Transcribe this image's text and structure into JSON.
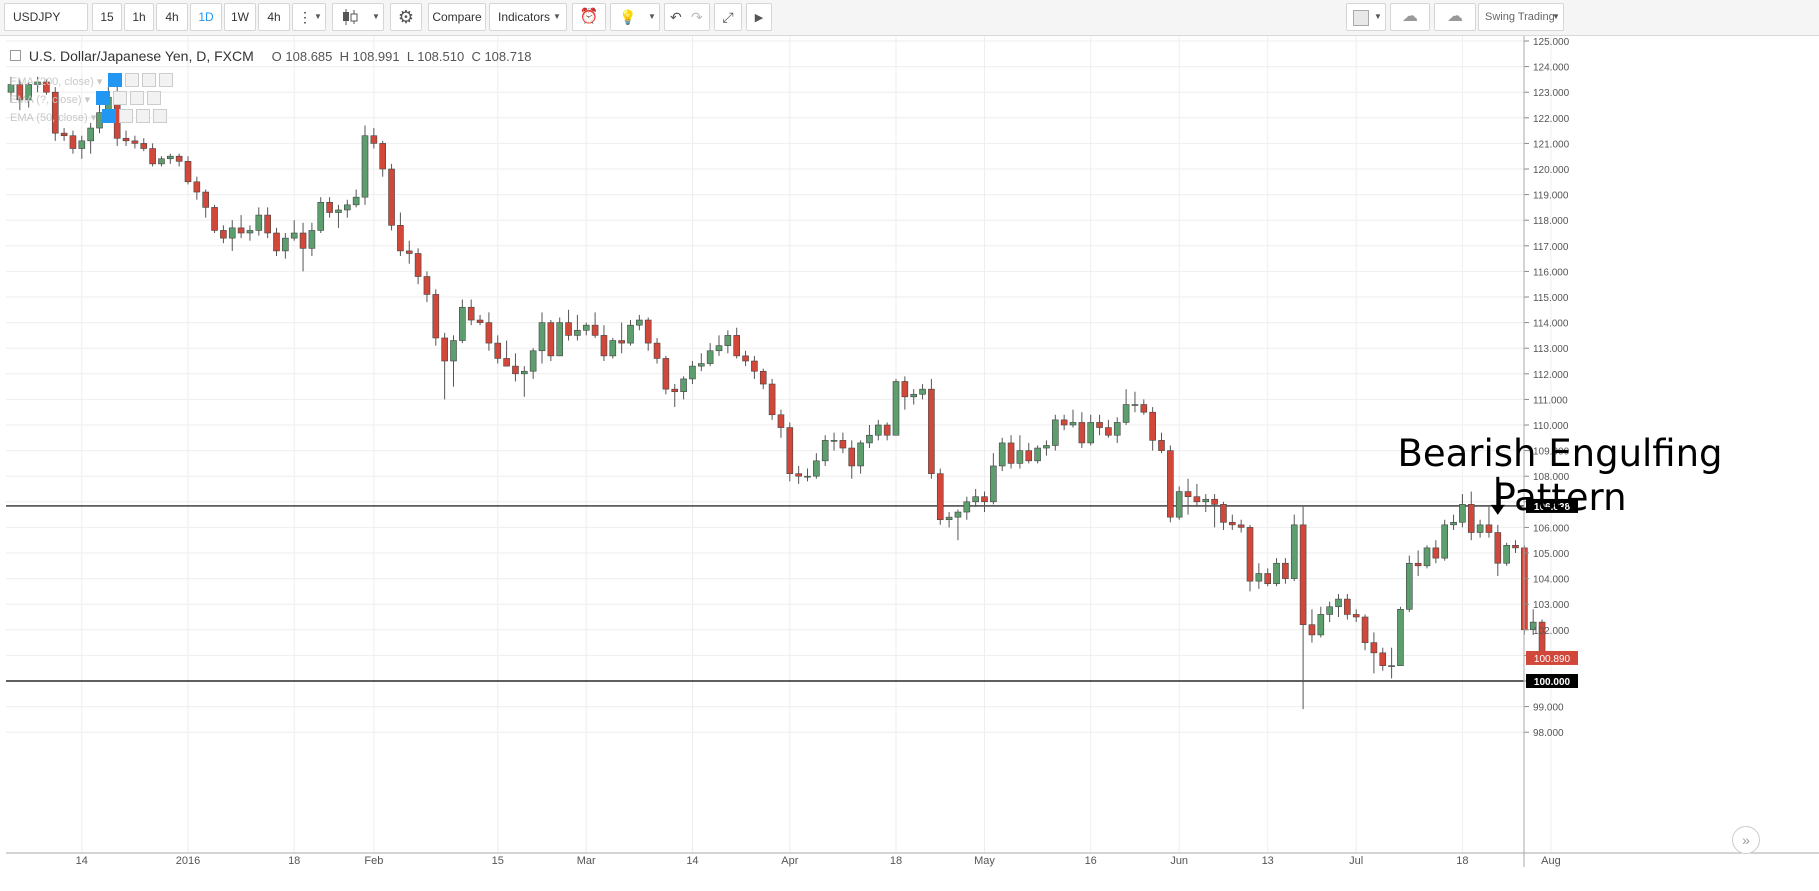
{
  "toolbar": {
    "symbol": "USDJPY",
    "intervals": [
      "15",
      "1h",
      "4h",
      "1D",
      "1W",
      "4h"
    ],
    "active_interval": "1D",
    "compare_label": "Compare",
    "indicators_label": "Indicators",
    "layout_label": "Swing Trading"
  },
  "legend": {
    "title": "U.S. Dollar/Japanese Yen, D, FXCM",
    "open": "O 108.685",
    "high": "H 108.991",
    "low": "L 108.510",
    "close": "C 108.718",
    "indicators": [
      "EMA (200, close)",
      "EMA (?, close)",
      "EMA (50, close)"
    ]
  },
  "annotation": {
    "line1": "Bearish Engulfing",
    "line2": "Pattern"
  },
  "colors": {
    "up": "#5c9e6e",
    "down": "#d1483a",
    "grid": "#eeeeee",
    "level_line": "#000000",
    "last_price_bg": "#d1483a"
  },
  "chart_data": {
    "type": "candlestick",
    "symbol": "USDJPY",
    "timeframe": "D",
    "ylim": [
      97.6,
      125.3
    ],
    "y_ticks": [
      98,
      99,
      100,
      101,
      102,
      103,
      104,
      105,
      106,
      107,
      108,
      109,
      110,
      111,
      112,
      113,
      114,
      115,
      116,
      117,
      118,
      119,
      120,
      121,
      122,
      123,
      124,
      125
    ],
    "x_tick_labels": [
      "14",
      "2016",
      "18",
      "Feb",
      "15",
      "Mar",
      "14",
      "Apr",
      "18",
      "May",
      "16",
      "Jun",
      "13",
      "Jul",
      "18",
      "Aug"
    ],
    "x_tick_index": [
      8,
      20,
      32,
      41,
      55,
      65,
      77,
      88,
      100,
      110,
      122,
      132,
      142,
      152,
      164,
      174
    ],
    "horizontal_levels": [
      106.838,
      100.0
    ],
    "level_labels": [
      "106.838",
      "100.000"
    ],
    "last_price": "100.890",
    "annotations": [
      {
        "text": "Bearish Engulfing Pattern",
        "candle_index": 168
      }
    ],
    "candles": [
      {
        "o": 123.0,
        "h": 123.6,
        "l": 122.6,
        "c": 123.3
      },
      {
        "o": 123.3,
        "h": 123.5,
        "l": 122.3,
        "c": 122.7
      },
      {
        "o": 122.7,
        "h": 123.4,
        "l": 122.4,
        "c": 123.3
      },
      {
        "o": 123.3,
        "h": 123.6,
        "l": 123.0,
        "c": 123.4
      },
      {
        "o": 123.4,
        "h": 123.5,
        "l": 122.9,
        "c": 123.0
      },
      {
        "o": 123.0,
        "h": 123.2,
        "l": 121.1,
        "c": 121.4
      },
      {
        "o": 121.4,
        "h": 121.6,
        "l": 121.1,
        "c": 121.3
      },
      {
        "o": 121.3,
        "h": 121.5,
        "l": 120.6,
        "c": 120.8
      },
      {
        "o": 120.8,
        "h": 121.3,
        "l": 120.4,
        "c": 121.1
      },
      {
        "o": 121.1,
        "h": 121.8,
        "l": 120.6,
        "c": 121.6
      },
      {
        "o": 121.6,
        "h": 122.5,
        "l": 121.4,
        "c": 122.2
      },
      {
        "o": 122.2,
        "h": 123.2,
        "l": 121.9,
        "c": 122.8
      },
      {
        "o": 122.8,
        "h": 123.3,
        "l": 120.9,
        "c": 121.2
      },
      {
        "o": 121.2,
        "h": 121.5,
        "l": 120.9,
        "c": 121.1
      },
      {
        "o": 121.1,
        "h": 121.3,
        "l": 120.8,
        "c": 121.0
      },
      {
        "o": 121.0,
        "h": 121.2,
        "l": 120.7,
        "c": 120.8
      },
      {
        "o": 120.8,
        "h": 121.0,
        "l": 120.1,
        "c": 120.2
      },
      {
        "o": 120.2,
        "h": 120.5,
        "l": 120.1,
        "c": 120.4
      },
      {
        "o": 120.4,
        "h": 120.6,
        "l": 120.2,
        "c": 120.5
      },
      {
        "o": 120.5,
        "h": 120.6,
        "l": 120.1,
        "c": 120.3
      },
      {
        "o": 120.3,
        "h": 120.5,
        "l": 119.4,
        "c": 119.5
      },
      {
        "o": 119.5,
        "h": 119.7,
        "l": 118.8,
        "c": 119.1
      },
      {
        "o": 119.1,
        "h": 119.2,
        "l": 118.1,
        "c": 118.5
      },
      {
        "o": 118.5,
        "h": 118.6,
        "l": 117.5,
        "c": 117.6
      },
      {
        "o": 117.6,
        "h": 117.8,
        "l": 117.1,
        "c": 117.3
      },
      {
        "o": 117.3,
        "h": 118.0,
        "l": 116.8,
        "c": 117.7
      },
      {
        "o": 117.7,
        "h": 118.2,
        "l": 117.3,
        "c": 117.5
      },
      {
        "o": 117.5,
        "h": 117.8,
        "l": 117.2,
        "c": 117.6
      },
      {
        "o": 117.6,
        "h": 118.5,
        "l": 117.4,
        "c": 118.2
      },
      {
        "o": 118.2,
        "h": 118.5,
        "l": 117.3,
        "c": 117.5
      },
      {
        "o": 117.5,
        "h": 117.7,
        "l": 116.6,
        "c": 116.8
      },
      {
        "o": 116.8,
        "h": 117.5,
        "l": 116.5,
        "c": 117.3
      },
      {
        "o": 117.3,
        "h": 118.0,
        "l": 117.2,
        "c": 117.5
      },
      {
        "o": 117.5,
        "h": 117.9,
        "l": 116.0,
        "c": 116.9
      },
      {
        "o": 116.9,
        "h": 117.9,
        "l": 116.6,
        "c": 117.6
      },
      {
        "o": 117.6,
        "h": 118.9,
        "l": 117.5,
        "c": 118.7
      },
      {
        "o": 118.7,
        "h": 118.9,
        "l": 118.1,
        "c": 118.3
      },
      {
        "o": 118.3,
        "h": 118.6,
        "l": 117.7,
        "c": 118.4
      },
      {
        "o": 118.4,
        "h": 118.8,
        "l": 118.1,
        "c": 118.6
      },
      {
        "o": 118.6,
        "h": 119.2,
        "l": 118.5,
        "c": 118.9
      },
      {
        "o": 118.9,
        "h": 121.7,
        "l": 118.6,
        "c": 121.3
      },
      {
        "o": 121.3,
        "h": 121.6,
        "l": 120.8,
        "c": 121.0
      },
      {
        "o": 121.0,
        "h": 121.1,
        "l": 119.7,
        "c": 120.0
      },
      {
        "o": 120.0,
        "h": 120.2,
        "l": 117.6,
        "c": 117.8
      },
      {
        "o": 117.8,
        "h": 118.3,
        "l": 116.6,
        "c": 116.8
      },
      {
        "o": 116.8,
        "h": 117.2,
        "l": 116.3,
        "c": 116.7
      },
      {
        "o": 116.7,
        "h": 116.9,
        "l": 115.5,
        "c": 115.8
      },
      {
        "o": 115.8,
        "h": 116.0,
        "l": 114.8,
        "c": 115.1
      },
      {
        "o": 115.1,
        "h": 115.3,
        "l": 113.1,
        "c": 113.4
      },
      {
        "o": 113.4,
        "h": 113.6,
        "l": 111.0,
        "c": 112.5
      },
      {
        "o": 112.5,
        "h": 113.5,
        "l": 111.5,
        "c": 113.3
      },
      {
        "o": 113.3,
        "h": 114.9,
        "l": 113.2,
        "c": 114.6
      },
      {
        "o": 114.6,
        "h": 114.9,
        "l": 113.9,
        "c": 114.1
      },
      {
        "o": 114.1,
        "h": 114.3,
        "l": 113.9,
        "c": 114.0
      },
      {
        "o": 114.0,
        "h": 114.4,
        "l": 112.9,
        "c": 113.2
      },
      {
        "o": 113.2,
        "h": 113.5,
        "l": 112.4,
        "c": 112.6
      },
      {
        "o": 112.6,
        "h": 113.3,
        "l": 112.3,
        "c": 112.3
      },
      {
        "o": 112.3,
        "h": 112.8,
        "l": 111.7,
        "c": 112.0
      },
      {
        "o": 112.0,
        "h": 112.3,
        "l": 111.1,
        "c": 112.1
      },
      {
        "o": 112.1,
        "h": 113.0,
        "l": 111.8,
        "c": 112.9
      },
      {
        "o": 112.9,
        "h": 114.4,
        "l": 112.4,
        "c": 114.0
      },
      {
        "o": 114.0,
        "h": 114.1,
        "l": 112.5,
        "c": 112.7
      },
      {
        "o": 112.7,
        "h": 114.2,
        "l": 112.7,
        "c": 114.0
      },
      {
        "o": 114.0,
        "h": 114.5,
        "l": 113.3,
        "c": 113.5
      },
      {
        "o": 113.5,
        "h": 114.3,
        "l": 113.3,
        "c": 113.7
      },
      {
        "o": 113.7,
        "h": 114.0,
        "l": 113.5,
        "c": 113.9
      },
      {
        "o": 113.9,
        "h": 114.4,
        "l": 113.4,
        "c": 113.5
      },
      {
        "o": 113.5,
        "h": 113.9,
        "l": 112.5,
        "c": 112.7
      },
      {
        "o": 112.7,
        "h": 113.4,
        "l": 112.6,
        "c": 113.3
      },
      {
        "o": 113.3,
        "h": 114.0,
        "l": 112.8,
        "c": 113.2
      },
      {
        "o": 113.2,
        "h": 114.1,
        "l": 113.1,
        "c": 113.9
      },
      {
        "o": 113.9,
        "h": 114.3,
        "l": 113.7,
        "c": 114.1
      },
      {
        "o": 114.1,
        "h": 114.2,
        "l": 112.9,
        "c": 113.2
      },
      {
        "o": 113.2,
        "h": 113.4,
        "l": 112.4,
        "c": 112.6
      },
      {
        "o": 112.6,
        "h": 112.7,
        "l": 111.2,
        "c": 111.4
      },
      {
        "o": 111.4,
        "h": 111.6,
        "l": 110.7,
        "c": 111.3
      },
      {
        "o": 111.3,
        "h": 111.9,
        "l": 111.0,
        "c": 111.8
      },
      {
        "o": 111.8,
        "h": 112.5,
        "l": 111.6,
        "c": 112.3
      },
      {
        "o": 112.3,
        "h": 112.8,
        "l": 112.1,
        "c": 112.4
      },
      {
        "o": 112.4,
        "h": 113.2,
        "l": 112.3,
        "c": 112.9
      },
      {
        "o": 112.9,
        "h": 113.5,
        "l": 112.7,
        "c": 113.1
      },
      {
        "o": 113.1,
        "h": 113.7,
        "l": 112.8,
        "c": 113.5
      },
      {
        "o": 113.5,
        "h": 113.8,
        "l": 112.6,
        "c": 112.7
      },
      {
        "o": 112.7,
        "h": 112.9,
        "l": 112.3,
        "c": 112.5
      },
      {
        "o": 112.5,
        "h": 112.7,
        "l": 111.8,
        "c": 112.1
      },
      {
        "o": 112.1,
        "h": 112.2,
        "l": 111.4,
        "c": 111.6
      },
      {
        "o": 111.6,
        "h": 111.8,
        "l": 110.2,
        "c": 110.4
      },
      {
        "o": 110.4,
        "h": 110.6,
        "l": 109.5,
        "c": 109.9
      },
      {
        "o": 109.9,
        "h": 110.1,
        "l": 107.8,
        "c": 108.1
      },
      {
        "o": 108.1,
        "h": 108.4,
        "l": 107.7,
        "c": 108.0
      },
      {
        "o": 108.0,
        "h": 108.3,
        "l": 107.8,
        "c": 108.0
      },
      {
        "o": 108.0,
        "h": 108.9,
        "l": 107.9,
        "c": 108.6
      },
      {
        "o": 108.6,
        "h": 109.6,
        "l": 108.4,
        "c": 109.4
      },
      {
        "o": 109.4,
        "h": 109.7,
        "l": 109.0,
        "c": 109.4
      },
      {
        "o": 109.4,
        "h": 109.7,
        "l": 108.9,
        "c": 109.1
      },
      {
        "o": 109.1,
        "h": 109.4,
        "l": 107.9,
        "c": 108.4
      },
      {
        "o": 108.4,
        "h": 109.4,
        "l": 108.1,
        "c": 109.3
      },
      {
        "o": 109.3,
        "h": 110.0,
        "l": 109.1,
        "c": 109.6
      },
      {
        "o": 109.6,
        "h": 110.2,
        "l": 109.4,
        "c": 110.0
      },
      {
        "o": 110.0,
        "h": 110.1,
        "l": 109.4,
        "c": 109.6
      },
      {
        "o": 109.6,
        "h": 111.8,
        "l": 109.6,
        "c": 111.7
      },
      {
        "o": 111.7,
        "h": 111.9,
        "l": 110.6,
        "c": 111.1
      },
      {
        "o": 111.1,
        "h": 111.4,
        "l": 110.8,
        "c": 111.2
      },
      {
        "o": 111.2,
        "h": 111.6,
        "l": 111.0,
        "c": 111.4
      },
      {
        "o": 111.4,
        "h": 111.8,
        "l": 107.9,
        "c": 108.1
      },
      {
        "o": 108.1,
        "h": 108.3,
        "l": 106.1,
        "c": 106.3
      },
      {
        "o": 106.3,
        "h": 106.6,
        "l": 106.0,
        "c": 106.4
      },
      {
        "o": 106.4,
        "h": 106.7,
        "l": 105.5,
        "c": 106.6
      },
      {
        "o": 106.6,
        "h": 107.2,
        "l": 106.3,
        "c": 107.0
      },
      {
        "o": 107.0,
        "h": 107.5,
        "l": 106.8,
        "c": 107.2
      },
      {
        "o": 107.2,
        "h": 107.4,
        "l": 106.6,
        "c": 107.0
      },
      {
        "o": 107.0,
        "h": 108.9,
        "l": 106.9,
        "c": 108.4
      },
      {
        "o": 108.4,
        "h": 109.5,
        "l": 108.2,
        "c": 109.3
      },
      {
        "o": 109.3,
        "h": 109.6,
        "l": 108.3,
        "c": 108.5
      },
      {
        "o": 108.5,
        "h": 109.6,
        "l": 108.3,
        "c": 109.0
      },
      {
        "o": 109.0,
        "h": 109.3,
        "l": 108.5,
        "c": 108.6
      },
      {
        "o": 108.6,
        "h": 109.2,
        "l": 108.5,
        "c": 109.1
      },
      {
        "o": 109.1,
        "h": 109.4,
        "l": 108.8,
        "c": 109.2
      },
      {
        "o": 109.2,
        "h": 110.4,
        "l": 109.0,
        "c": 110.2
      },
      {
        "o": 110.2,
        "h": 110.4,
        "l": 109.8,
        "c": 110.0
      },
      {
        "o": 110.0,
        "h": 110.6,
        "l": 109.9,
        "c": 110.1
      },
      {
        "o": 110.1,
        "h": 110.5,
        "l": 109.1,
        "c": 109.3
      },
      {
        "o": 109.3,
        "h": 110.4,
        "l": 109.2,
        "c": 110.1
      },
      {
        "o": 110.1,
        "h": 110.4,
        "l": 109.6,
        "c": 109.9
      },
      {
        "o": 109.9,
        "h": 110.2,
        "l": 109.5,
        "c": 109.6
      },
      {
        "o": 109.6,
        "h": 110.3,
        "l": 109.3,
        "c": 110.1
      },
      {
        "o": 110.1,
        "h": 111.4,
        "l": 110.0,
        "c": 110.8
      },
      {
        "o": 110.8,
        "h": 111.3,
        "l": 110.5,
        "c": 110.8
      },
      {
        "o": 110.8,
        "h": 111.0,
        "l": 110.4,
        "c": 110.5
      },
      {
        "o": 110.5,
        "h": 110.7,
        "l": 109.0,
        "c": 109.4
      },
      {
        "o": 109.4,
        "h": 109.7,
        "l": 108.9,
        "c": 109.0
      },
      {
        "o": 109.0,
        "h": 109.2,
        "l": 106.2,
        "c": 106.4
      },
      {
        "o": 106.4,
        "h": 107.6,
        "l": 106.3,
        "c": 107.4
      },
      {
        "o": 107.4,
        "h": 107.9,
        "l": 106.5,
        "c": 107.2
      },
      {
        "o": 107.2,
        "h": 107.7,
        "l": 106.8,
        "c": 107.0
      },
      {
        "o": 107.0,
        "h": 107.3,
        "l": 106.6,
        "c": 107.1
      },
      {
        "o": 107.1,
        "h": 107.3,
        "l": 106.0,
        "c": 106.9
      },
      {
        "o": 106.9,
        "h": 107.0,
        "l": 105.9,
        "c": 106.2
      },
      {
        "o": 106.2,
        "h": 106.5,
        "l": 105.9,
        "c": 106.1
      },
      {
        "o": 106.1,
        "h": 106.3,
        "l": 105.8,
        "c": 106.0
      },
      {
        "o": 106.0,
        "h": 106.1,
        "l": 103.5,
        "c": 103.9
      },
      {
        "o": 103.9,
        "h": 104.6,
        "l": 103.6,
        "c": 104.2
      },
      {
        "o": 104.2,
        "h": 104.4,
        "l": 103.7,
        "c": 103.8
      },
      {
        "o": 103.8,
        "h": 104.8,
        "l": 103.7,
        "c": 104.6
      },
      {
        "o": 104.6,
        "h": 104.8,
        "l": 103.8,
        "c": 104.0
      },
      {
        "o": 104.0,
        "h": 106.5,
        "l": 103.9,
        "c": 106.1
      },
      {
        "o": 106.1,
        "h": 106.8,
        "l": 98.9,
        "c": 102.2
      },
      {
        "o": 102.2,
        "h": 102.8,
        "l": 101.5,
        "c": 101.8
      },
      {
        "o": 101.8,
        "h": 102.9,
        "l": 101.7,
        "c": 102.6
      },
      {
        "o": 102.6,
        "h": 103.1,
        "l": 102.3,
        "c": 102.9
      },
      {
        "o": 102.9,
        "h": 103.4,
        "l": 102.5,
        "c": 103.2
      },
      {
        "o": 103.2,
        "h": 103.4,
        "l": 102.4,
        "c": 102.6
      },
      {
        "o": 102.6,
        "h": 102.8,
        "l": 102.3,
        "c": 102.5
      },
      {
        "o": 102.5,
        "h": 102.6,
        "l": 101.2,
        "c": 101.5
      },
      {
        "o": 101.5,
        "h": 101.9,
        "l": 100.3,
        "c": 101.1
      },
      {
        "o": 101.1,
        "h": 101.3,
        "l": 100.4,
        "c": 100.6
      },
      {
        "o": 100.6,
        "h": 101.3,
        "l": 100.1,
        "c": 100.6
      },
      {
        "o": 100.6,
        "h": 102.9,
        "l": 100.6,
        "c": 102.8
      },
      {
        "o": 102.8,
        "h": 104.9,
        "l": 102.7,
        "c": 104.6
      },
      {
        "o": 104.6,
        "h": 105.1,
        "l": 104.1,
        "c": 104.5
      },
      {
        "o": 104.5,
        "h": 105.3,
        "l": 104.4,
        "c": 105.2
      },
      {
        "o": 105.2,
        "h": 105.5,
        "l": 104.6,
        "c": 104.8
      },
      {
        "o": 104.8,
        "h": 106.3,
        "l": 104.7,
        "c": 106.1
      },
      {
        "o": 106.1,
        "h": 106.5,
        "l": 105.9,
        "c": 106.2
      },
      {
        "o": 106.2,
        "h": 107.3,
        "l": 106.0,
        "c": 106.9
      },
      {
        "o": 106.9,
        "h": 107.4,
        "l": 105.5,
        "c": 105.8
      },
      {
        "o": 105.8,
        "h": 106.3,
        "l": 105.6,
        "c": 106.1
      },
      {
        "o": 106.1,
        "h": 106.8,
        "l": 105.6,
        "c": 105.8
      },
      {
        "o": 105.8,
        "h": 106.1,
        "l": 104.1,
        "c": 104.6
      },
      {
        "o": 104.6,
        "h": 105.4,
        "l": 104.5,
        "c": 105.3
      },
      {
        "o": 105.3,
        "h": 105.5,
        "l": 105.0,
        "c": 105.2
      },
      {
        "o": 105.2,
        "h": 105.3,
        "l": 101.8,
        "c": 102.0
      },
      {
        "o": 102.0,
        "h": 102.8,
        "l": 101.8,
        "c": 102.3
      },
      {
        "o": 102.3,
        "h": 102.4,
        "l": 100.7,
        "c": 100.9
      }
    ]
  }
}
